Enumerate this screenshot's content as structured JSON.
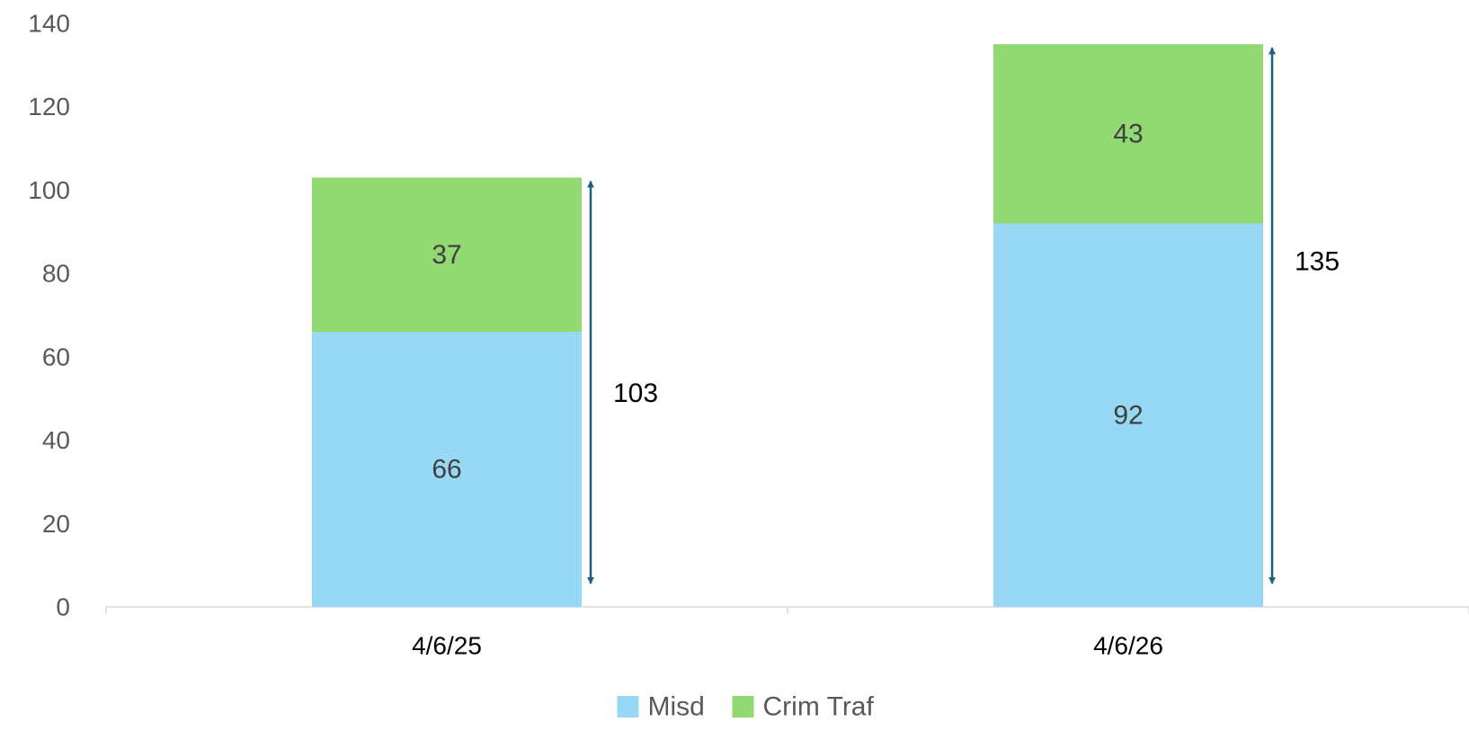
{
  "chart_data": {
    "type": "bar",
    "stacked": true,
    "categories": [
      "4/6/25",
      "4/6/26"
    ],
    "series": [
      {
        "name": "Misd",
        "values": [
          66,
          92
        ],
        "labels": [
          "66",
          "92"
        ],
        "color": "#97D9F5"
      },
      {
        "name": "Crim Traf",
        "values": [
          37,
          43
        ],
        "labels": [
          "37",
          "43"
        ],
        "color": "#92D873"
      }
    ],
    "totals": [
      103,
      135
    ],
    "total_labels": [
      "103",
      "135"
    ],
    "total_arrow_color": "#1F5F7E",
    "ylim": [
      0,
      140
    ],
    "yticks": [
      0,
      20,
      40,
      60,
      80,
      100,
      120,
      140
    ],
    "ytick_labels": [
      "0",
      "20",
      "40",
      "60",
      "80",
      "100",
      "120",
      "140"
    ],
    "grid": false,
    "legend": {
      "position": "bottom",
      "entries": [
        "Misd",
        "Crim Traf"
      ]
    },
    "title": "",
    "xlabel": "",
    "ylabel": ""
  }
}
